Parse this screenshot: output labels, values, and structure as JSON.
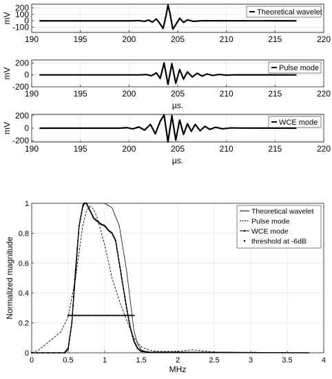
{
  "chart_data": [
    {
      "type": "line",
      "ylabel": "mV",
      "xlabel": "",
      "xlim": [
        190,
        220
      ],
      "ylim": [
        -180,
        260
      ],
      "xticks": [
        "190",
        "195",
        "200",
        "205",
        "210",
        "215",
        "220"
      ],
      "yticks": [
        "200",
        "100",
        "0",
        "-100"
      ],
      "grid": true,
      "legend_position": "top-right",
      "series": [
        {
          "name": "Theoretical wavelet",
          "x": [
            190.8,
            200.0,
            201.0,
            201.6,
            202.0,
            202.4,
            202.8,
            203.2,
            203.5,
            203.8,
            204.0,
            204.2,
            204.5,
            204.8,
            205.2,
            205.6,
            206.0,
            206.6,
            207.5,
            217.2
          ],
          "y": [
            0,
            0,
            3,
            -8,
            12,
            -20,
            30,
            -50,
            -120,
            80,
            245,
            120,
            -130,
            -60,
            40,
            -25,
            15,
            -8,
            2,
            0
          ]
        }
      ]
    },
    {
      "type": "line",
      "ylabel": "mV",
      "xlabel": "µs.",
      "xlim": [
        190,
        220
      ],
      "ylim": [
        -200,
        250
      ],
      "xticks": [
        "190",
        "195",
        "200",
        "205",
        "210",
        "215",
        "220"
      ],
      "yticks": [
        "200",
        "0",
        "-200"
      ],
      "grid": true,
      "legend_position": "top-right",
      "series": [
        {
          "name": "Pulse mode",
          "x": [
            190.8,
            201.0,
            201.8,
            202.3,
            202.8,
            203.2,
            203.6,
            204.0,
            204.4,
            204.8,
            205.2,
            205.6,
            206.0,
            206.5,
            207.0,
            207.5,
            208.0,
            208.6,
            209.2,
            210.0,
            211.0,
            217.2
          ],
          "y": [
            0,
            0,
            5,
            -15,
            35,
            -60,
            200,
            -160,
            190,
            -140,
            90,
            -70,
            50,
            -35,
            28,
            -20,
            15,
            -10,
            7,
            -4,
            1,
            0
          ]
        }
      ]
    },
    {
      "type": "line",
      "ylabel": "mV",
      "xlabel": "µs.",
      "xlim": [
        190,
        220
      ],
      "ylim": [
        -220,
        220
      ],
      "xticks": [
        "190",
        "195",
        "200",
        "205",
        "210",
        "215",
        "220"
      ],
      "yticks": [
        "200",
        "0",
        "-200"
      ],
      "grid": true,
      "legend_position": "top-right",
      "series": [
        {
          "name": "WCE mode",
          "x": [
            190.8,
            199.0,
            199.8,
            200.4,
            201.0,
            201.6,
            202.2,
            202.7,
            203.2,
            203.6,
            204.0,
            204.4,
            204.8,
            205.2,
            205.6,
            206.0,
            206.4,
            206.8,
            207.3,
            207.8,
            208.3,
            208.9,
            209.6,
            210.5,
            211.5,
            217.2
          ],
          "y": [
            0,
            0,
            8,
            -12,
            20,
            -30,
            60,
            -90,
            110,
            210,
            -220,
            200,
            -190,
            130,
            -100,
            70,
            -50,
            60,
            -40,
            30,
            -20,
            15,
            -10,
            5,
            2,
            0
          ]
        }
      ]
    },
    {
      "type": "line",
      "ylabel": "Normalized magnitude",
      "xlabel": "MHz",
      "xlim": [
        0,
        4
      ],
      "ylim": [
        0,
        1
      ],
      "xticks": [
        "0",
        "0.5",
        "1",
        "1.5",
        "2",
        "2.5",
        "3",
        "3.5",
        "4"
      ],
      "yticks": [
        "0",
        "0.2",
        "0.4",
        "0.6",
        "0.8",
        "1"
      ],
      "grid": true,
      "legend_position": "top-right",
      "series": [
        {
          "name": "Theoretical wavelet",
          "style": "solid-thin",
          "x": [
            0,
            0.45,
            0.5,
            0.55,
            0.6,
            0.65,
            0.7,
            0.75,
            0.8,
            1.0,
            1.1,
            1.2,
            1.3,
            1.35,
            1.4,
            1.45,
            1.5,
            1.6,
            3.8
          ],
          "y": [
            0,
            0,
            0.02,
            0.2,
            0.5,
            0.85,
            0.99,
            1.0,
            1.0,
            1.0,
            0.97,
            0.85,
            0.55,
            0.35,
            0.15,
            0.06,
            0.02,
            0,
            0
          ]
        },
        {
          "name": "Pulse mode",
          "style": "dashed",
          "x": [
            0,
            0.1,
            0.2,
            0.3,
            0.4,
            0.5,
            0.6,
            0.7,
            0.75,
            0.8,
            0.85,
            0.9,
            1.0,
            1.1,
            1.2,
            1.3,
            1.4,
            1.5,
            1.6,
            1.7,
            2.0,
            2.1,
            2.2,
            2.3,
            2.5,
            3.8
          ],
          "y": [
            0,
            0.02,
            0.06,
            0.1,
            0.14,
            0.24,
            0.5,
            0.85,
            0.95,
            0.98,
            0.96,
            0.9,
            0.72,
            0.5,
            0.35,
            0.22,
            0.1,
            0.04,
            0.02,
            0.01,
            0.01,
            0.015,
            0.02,
            0.015,
            0.005,
            0
          ]
        },
        {
          "name": "WCE mode",
          "style": "solid-dotted",
          "x": [
            0,
            0.45,
            0.5,
            0.55,
            0.6,
            0.65,
            0.7,
            0.72,
            0.75,
            0.8,
            0.85,
            0.9,
            0.95,
            1.0,
            1.05,
            1.1,
            1.15,
            1.2,
            1.25,
            1.3,
            1.35,
            1.4,
            1.45,
            1.5,
            1.6,
            3.8
          ],
          "y": [
            0,
            0,
            0.03,
            0.2,
            0.55,
            0.85,
            0.98,
            1.0,
            1.0,
            0.95,
            0.9,
            0.88,
            0.86,
            0.85,
            0.82,
            0.8,
            0.75,
            0.6,
            0.45,
            0.3,
            0.17,
            0.08,
            0.03,
            0.01,
            0.005,
            0
          ]
        },
        {
          "name": "threshold at -6dB",
          "style": "dots",
          "x": [
            0.5,
            1.4
          ],
          "y": [
            0.25,
            0.25
          ]
        }
      ]
    }
  ]
}
